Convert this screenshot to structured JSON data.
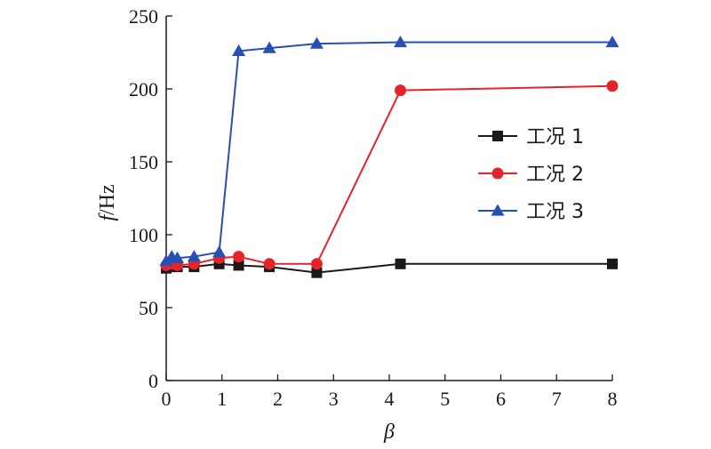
{
  "chart_data": {
    "type": "line",
    "xlabel": "β",
    "ylabel_symbol": "f",
    "ylabel_unit": "/Hz",
    "xlim": [
      0,
      8
    ],
    "ylim": [
      0,
      250
    ],
    "xticks": [
      0,
      1,
      2,
      3,
      4,
      5,
      6,
      7,
      8
    ],
    "yticks": [
      0,
      50,
      100,
      150,
      200,
      250
    ],
    "grid": false,
    "legend_position": "right",
    "series": [
      {
        "name": "工况 1",
        "color": "#1a1a1a",
        "marker": "square",
        "x": [
          0,
          0.1,
          0.2,
          0.5,
          0.95,
          1.3,
          1.85,
          2.7,
          4.2,
          8.0
        ],
        "y": [
          77,
          78,
          78,
          78,
          80,
          79,
          78,
          74,
          80,
          80
        ]
      },
      {
        "name": "工况 2",
        "color": "#e3242b",
        "marker": "circle",
        "x": [
          0,
          0.1,
          0.2,
          0.5,
          0.95,
          1.3,
          1.85,
          2.7,
          4.2,
          8.0
        ],
        "y": [
          79,
          80,
          79,
          80,
          84,
          85,
          80,
          80,
          199,
          202
        ]
      },
      {
        "name": "工况 3",
        "color": "#2850b4",
        "marker": "triangle",
        "x": [
          0,
          0.1,
          0.2,
          0.5,
          0.95,
          1.3,
          1.85,
          2.7,
          4.2,
          8.0
        ],
        "y": [
          82,
          85,
          84,
          85,
          88,
          226,
          228,
          231,
          232,
          232
        ]
      }
    ]
  }
}
